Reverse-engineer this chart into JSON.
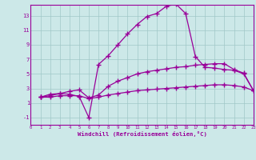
{
  "xlabel": "Windchill (Refroidissement éolien,°C)",
  "bg_color": "#cce8e8",
  "line_color": "#990099",
  "xlim": [
    0,
    23
  ],
  "ylim": [
    -2,
    14.5
  ],
  "xticks": [
    0,
    1,
    2,
    3,
    4,
    5,
    6,
    7,
    8,
    9,
    10,
    11,
    12,
    13,
    14,
    15,
    16,
    17,
    18,
    19,
    20,
    21,
    22,
    23
  ],
  "yticks": [
    -1,
    1,
    3,
    5,
    7,
    9,
    11,
    13
  ],
  "line1_x": [
    1,
    2,
    3,
    4,
    5,
    6,
    7,
    8,
    9,
    10,
    11,
    12,
    13,
    14,
    15,
    16,
    17,
    18,
    19,
    20,
    21,
    22,
    23
  ],
  "line1_y": [
    1.8,
    2.2,
    2.3,
    2.2,
    1.9,
    -1.0,
    6.3,
    7.5,
    9.0,
    10.5,
    11.8,
    12.9,
    13.3,
    14.3,
    14.6,
    13.3,
    7.4,
    5.9,
    5.8,
    5.6,
    5.5,
    5.0,
    2.7
  ],
  "line2_x": [
    1,
    2,
    3,
    4,
    5,
    6,
    7,
    8,
    9,
    10,
    11,
    12,
    13,
    14,
    15,
    16,
    17,
    18,
    19,
    20,
    21,
    22,
    23
  ],
  "line2_y": [
    1.8,
    2.0,
    2.3,
    2.6,
    2.8,
    1.7,
    2.1,
    3.3,
    4.0,
    4.5,
    5.0,
    5.3,
    5.5,
    5.7,
    5.9,
    6.0,
    6.2,
    6.3,
    6.4,
    6.4,
    5.6,
    5.1,
    2.7
  ],
  "line3_x": [
    1,
    2,
    3,
    4,
    5,
    6,
    7,
    8,
    9,
    10,
    11,
    12,
    13,
    14,
    15,
    16,
    17,
    18,
    19,
    20,
    21,
    22,
    23
  ],
  "line3_y": [
    1.8,
    1.8,
    2.0,
    2.0,
    2.0,
    1.6,
    1.8,
    2.1,
    2.3,
    2.5,
    2.7,
    2.8,
    2.9,
    3.0,
    3.1,
    3.2,
    3.3,
    3.4,
    3.5,
    3.5,
    3.4,
    3.2,
    2.7
  ]
}
